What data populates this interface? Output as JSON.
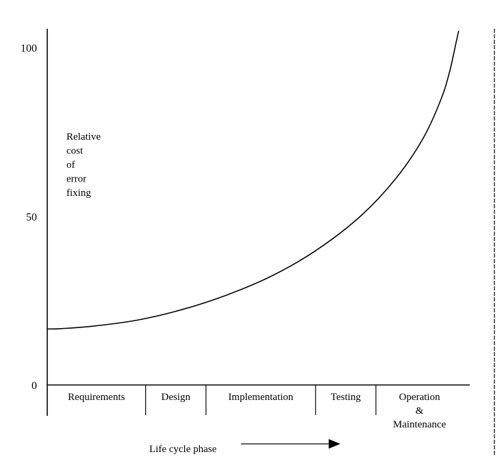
{
  "chart_data": {
    "type": "line",
    "ylabel_lines": [
      "Relative",
      "cost",
      "of",
      "error",
      "fixing"
    ],
    "xlabel": "Life cycle phase",
    "yticks": [
      0,
      50,
      100
    ],
    "ylim": [
      0,
      110
    ],
    "categories": [
      "Requirements",
      "Design",
      "Implementation",
      "Testing",
      "Operation & Maintenance"
    ],
    "category_label_lines": [
      [
        "Requirements"
      ],
      [
        "Design"
      ],
      [
        "Implementation"
      ],
      [
        "Testing"
      ],
      [
        "Operation",
        "&",
        "Maintenance"
      ]
    ],
    "category_boundaries": [
      0,
      0.22,
      0.355,
      0.6,
      0.735,
      0.93
    ],
    "grid": false,
    "legend": "none",
    "series": [
      {
        "x": [
          0,
          0.03,
          0.1,
          0.2,
          0.3,
          0.4,
          0.5,
          0.6,
          0.7,
          0.78,
          0.84,
          0.88,
          0.9,
          0.915,
          0.92
        ],
        "values": [
          16.6,
          16.7,
          17.4,
          19.2,
          22.3,
          26.6,
          32.2,
          39.8,
          50.0,
          61.3,
          73.0,
          84.5,
          93.0,
          102.0,
          105.0
        ]
      }
    ]
  }
}
